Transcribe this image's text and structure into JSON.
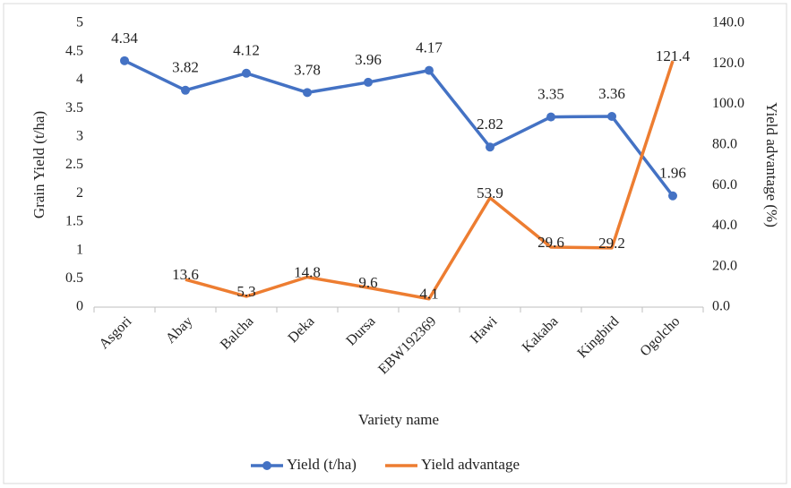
{
  "chart_data": {
    "type": "line",
    "x_label": "Variety name",
    "y_label": "Grain Yield (t/ha)",
    "y2_label": "Yield advantage (%)",
    "categories": [
      "Asgori",
      "Abay",
      "Balcha",
      "Deka",
      "Dursa",
      "EBW192369",
      "Hawi",
      "Kakaba",
      "Kingbird",
      "Ogolcho"
    ],
    "series": [
      {
        "name": "Yield (t/ha)",
        "color": "#4472c4",
        "marker": true,
        "values": [
          4.34,
          3.82,
          4.12,
          3.78,
          3.96,
          4.17,
          2.82,
          3.35,
          3.36,
          1.96
        ]
      },
      {
        "name": "Yield advantage",
        "color": "#ed7d31",
        "marker": false,
        "axis": "y2",
        "values": [
          null,
          13.6,
          5.3,
          14.8,
          9.6,
          4.1,
          53.9,
          29.6,
          29.2,
          121.4
        ]
      }
    ],
    "ylim": [
      0,
      5
    ],
    "yticks": [
      0,
      0.5,
      1,
      1.5,
      2,
      2.5,
      3,
      3.5,
      4,
      4.5,
      5
    ],
    "y2lim": [
      0,
      140
    ],
    "y2ticks": [
      {
        "value": 0,
        "label": "0.0"
      },
      {
        "value": 20,
        "label": "20.0"
      },
      {
        "value": 40,
        "label": "40.0"
      },
      {
        "value": 60,
        "label": "60.0"
      },
      {
        "value": 80,
        "label": "80.0"
      },
      {
        "value": 100,
        "label": "100.0"
      },
      {
        "value": 120,
        "label": "120.0"
      },
      {
        "value": 140,
        "label": "140.0"
      }
    ],
    "data_labels": true,
    "legend": "bottom"
  }
}
